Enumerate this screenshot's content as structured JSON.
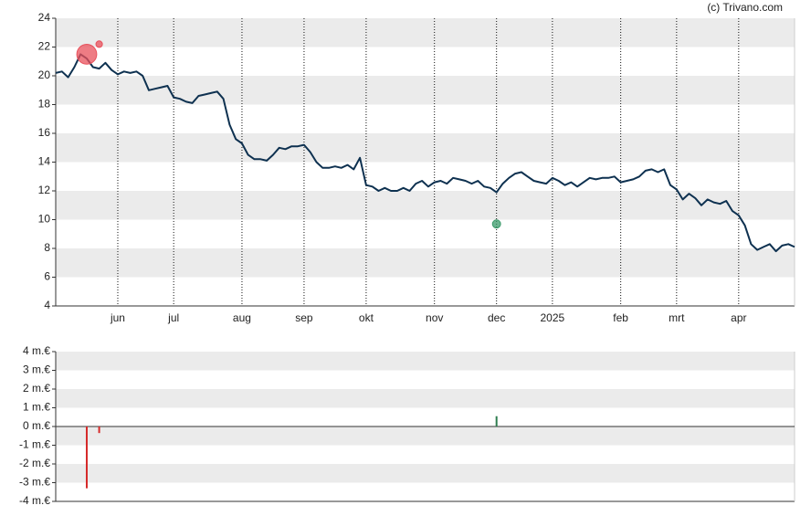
{
  "chart_data": [
    {
      "type": "line",
      "source": "(c) Trivano.com",
      "categories": [
        null,
        null,
        null,
        null,
        null,
        null,
        null,
        null,
        null,
        null,
        "jun",
        null,
        null,
        null,
        null,
        null,
        null,
        null,
        null,
        "jul",
        null,
        null,
        null,
        null,
        null,
        null,
        null,
        null,
        null,
        null,
        "aug",
        null,
        null,
        null,
        null,
        null,
        null,
        null,
        null,
        null,
        "sep",
        null,
        null,
        null,
        null,
        null,
        null,
        null,
        null,
        null,
        "okt",
        null,
        null,
        null,
        null,
        null,
        null,
        null,
        null,
        null,
        null,
        "nov",
        null,
        null,
        null,
        null,
        null,
        null,
        null,
        null,
        null,
        "dec",
        null,
        null,
        null,
        null,
        null,
        null,
        null,
        null,
        "2025",
        null,
        null,
        null,
        null,
        null,
        null,
        null,
        null,
        null,
        null,
        "feb",
        null,
        null,
        null,
        null,
        null,
        null,
        null,
        null,
        "mrt",
        null,
        null,
        null,
        null,
        null,
        null,
        null,
        null,
        null,
        "apr",
        null,
        null,
        null,
        null,
        null,
        null,
        null,
        null,
        null
      ],
      "series": [
        {
          "color": "#0e3150",
          "values": [
            20.2,
            20.3,
            19.9,
            20.6,
            21.5,
            21.2,
            20.6,
            20.5,
            20.9,
            20.4,
            20.1,
            20.3,
            20.2,
            20.3,
            20.0,
            19.0,
            19.1,
            19.2,
            19.3,
            18.5,
            18.4,
            18.2,
            18.1,
            18.6,
            18.7,
            18.8,
            18.9,
            18.4,
            16.6,
            15.6,
            15.3,
            14.5,
            14.2,
            14.2,
            14.1,
            14.5,
            15.0,
            14.9,
            15.1,
            15.1,
            15.2,
            14.7,
            14.0,
            13.6,
            13.6,
            13.7,
            13.6,
            13.8,
            13.5,
            14.3,
            12.4,
            12.3,
            12.0,
            12.2,
            12.0,
            12.0,
            12.2,
            12.0,
            12.5,
            12.7,
            12.3,
            12.6,
            12.7,
            12.5,
            12.9,
            12.8,
            12.7,
            12.5,
            12.7,
            12.3,
            12.2,
            11.9,
            12.5,
            12.9,
            13.2,
            13.3,
            13.0,
            12.7,
            12.6,
            12.5,
            12.9,
            12.7,
            12.4,
            12.6,
            12.3,
            12.6,
            12.9,
            12.8,
            12.9,
            12.9,
            13.0,
            12.6,
            12.7,
            12.8,
            13.0,
            13.4,
            13.5,
            13.3,
            13.5,
            12.4,
            12.1,
            11.4,
            11.8,
            11.5,
            11.0,
            11.4,
            11.2,
            11.1,
            11.3,
            10.6,
            10.3,
            9.6,
            8.3,
            7.9,
            8.1,
            8.3,
            7.8,
            8.2,
            8.3,
            8.1
          ]
        },
        {
          "color": "#e8505b",
          "marker": "circle",
          "values": [
            null,
            null,
            null,
            null,
            null,
            21.5,
            null,
            22.2,
            null,
            null,
            null,
            null,
            null,
            null,
            null,
            null,
            null,
            null,
            null,
            null,
            null,
            null,
            null,
            null,
            null,
            null,
            null,
            null,
            null,
            null,
            null,
            null,
            null,
            null,
            null,
            null,
            null,
            null,
            null,
            null,
            null,
            null,
            null,
            null,
            null,
            null,
            null,
            null,
            null,
            null,
            null,
            null,
            null,
            null,
            null,
            null,
            null,
            null,
            null,
            null,
            null,
            null,
            null,
            null,
            null,
            null,
            null,
            null,
            null,
            null,
            null,
            null,
            null,
            null,
            null,
            null,
            null,
            null,
            null,
            null,
            null,
            null,
            null,
            null,
            null,
            null,
            null,
            null,
            null,
            null,
            null,
            null,
            null,
            null,
            null,
            null,
            null,
            null,
            null,
            null,
            null,
            null,
            null,
            null,
            null,
            null,
            null,
            null,
            null,
            null,
            null,
            null,
            null,
            null,
            null,
            null,
            null,
            null,
            null,
            null
          ]
        },
        {
          "color": "#3a9a6a",
          "marker": "circle",
          "values": [
            null,
            null,
            null,
            null,
            null,
            null,
            null,
            null,
            null,
            null,
            null,
            null,
            null,
            null,
            null,
            null,
            null,
            null,
            null,
            null,
            null,
            null,
            null,
            null,
            null,
            null,
            null,
            null,
            null,
            null,
            null,
            null,
            null,
            null,
            null,
            null,
            null,
            null,
            null,
            null,
            null,
            null,
            null,
            null,
            null,
            null,
            null,
            null,
            null,
            null,
            null,
            null,
            null,
            null,
            null,
            null,
            null,
            null,
            null,
            null,
            null,
            null,
            null,
            null,
            null,
            null,
            null,
            null,
            null,
            null,
            null,
            9.7,
            null,
            null,
            null,
            null,
            null,
            null,
            null,
            null,
            null,
            null,
            null,
            null,
            null,
            null,
            null,
            null,
            null,
            null,
            null,
            null,
            null,
            null,
            null,
            null,
            null,
            null,
            null,
            null,
            null,
            null,
            null,
            null,
            null,
            null,
            null,
            null,
            null,
            null,
            null,
            null,
            null,
            null,
            null,
            null,
            null,
            null,
            null,
            null
          ]
        }
      ],
      "ylim": [
        4,
        24
      ],
      "yticks": [
        4,
        6,
        8,
        10,
        12,
        14,
        16,
        18,
        20,
        22,
        24
      ],
      "grid": true
    },
    {
      "type": "bar",
      "values": [
        null,
        null,
        null,
        null,
        null,
        -3.3,
        null,
        -0.35,
        null,
        null,
        null,
        null,
        null,
        null,
        null,
        null,
        null,
        null,
        null,
        null,
        null,
        null,
        null,
        null,
        null,
        null,
        null,
        null,
        null,
        null,
        null,
        null,
        null,
        null,
        null,
        null,
        null,
        null,
        null,
        null,
        null,
        null,
        null,
        null,
        null,
        null,
        null,
        null,
        null,
        null,
        null,
        null,
        null,
        null,
        null,
        null,
        null,
        null,
        null,
        null,
        null,
        null,
        null,
        null,
        null,
        null,
        null,
        null,
        null,
        null,
        null,
        0.55,
        null,
        null,
        null,
        null,
        null,
        null,
        null,
        null,
        null,
        null,
        null,
        null,
        null,
        null,
        null,
        null,
        null,
        null,
        null,
        null,
        null,
        null,
        null,
        null,
        null,
        null,
        null,
        null,
        null,
        null,
        null,
        null,
        null,
        null,
        null,
        null,
        null,
        null,
        null,
        null,
        null,
        null,
        null,
        null,
        null,
        null,
        null,
        null
      ],
      "color_positive": "#2e7d4f",
      "color_negative": "#d62a2a",
      "ylim": [
        -4,
        4
      ],
      "yticks": [
        {
          "value": -4,
          "label": "-4 m.€"
        },
        {
          "value": -3,
          "label": "-3 m.€"
        },
        {
          "value": -2,
          "label": "-2 m.€"
        },
        {
          "value": -1,
          "label": "-1 m.€"
        },
        {
          "value": 0,
          "label": "0 m.€"
        },
        {
          "value": 1,
          "label": "1 m.€"
        },
        {
          "value": 2,
          "label": "2 m.€"
        },
        {
          "value": 3,
          "label": "3 m.€"
        },
        {
          "value": 4,
          "label": "4 m.€"
        }
      ],
      "grid": true
    }
  ]
}
